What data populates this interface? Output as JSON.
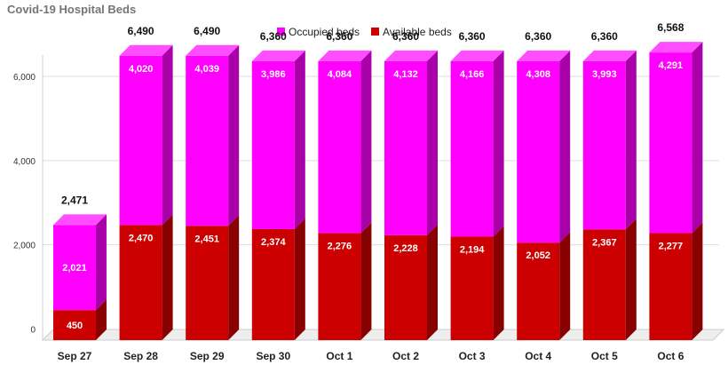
{
  "colors": {
    "occupied": "#ff00ff",
    "occupied_side": "#aa00aa",
    "occupied_top": "#ff4dff",
    "available": "#cc0000",
    "available_side": "#880000",
    "available_top": "#e02020",
    "grid": "#dddddd",
    "floor": "#eeeeee"
  },
  "chart_data": {
    "type": "bar",
    "stacked": true,
    "three_d": true,
    "title": "Covid-19 Hospital Beds",
    "xlabel": "",
    "ylabel": "",
    "ylim": [
      0,
      6500
    ],
    "yticks": [
      0,
      2000,
      4000,
      6000
    ],
    "ytick_labels": [
      "0",
      "2,000",
      "4,000",
      "6,000"
    ],
    "grid": true,
    "legend_position": "top-center",
    "categories": [
      "Sep 27",
      "Sep 28",
      "Sep 29",
      "Sep 30",
      "Oct 1",
      "Oct 2",
      "Oct 3",
      "Oct 4",
      "Oct 5",
      "Oct 6"
    ],
    "series": [
      {
        "name": "Available beds",
        "color": "#cc0000",
        "values": [
          450,
          2470,
          2451,
          2374,
          2276,
          2228,
          2194,
          2052,
          2367,
          2277
        ],
        "labels": [
          "450",
          "2,470",
          "2,451",
          "2,374",
          "2,276",
          "2,228",
          "2,194",
          "2,052",
          "2,367",
          "2,277"
        ]
      },
      {
        "name": "Occupied beds",
        "color": "#ff00ff",
        "values": [
          2021,
          4020,
          4039,
          3986,
          4084,
          4132,
          4166,
          4308,
          3993,
          4291
        ],
        "labels": [
          "2,021",
          "4,020",
          "4,039",
          "3,986",
          "4,084",
          "4,132",
          "4,166",
          "4,308",
          "3,993",
          "4,291"
        ]
      }
    ],
    "totals": [
      2471,
      6490,
      6490,
      6360,
      6360,
      6360,
      6360,
      6360,
      6360,
      6568
    ],
    "total_labels": [
      "2,471",
      "6,490",
      "6,490",
      "6,360",
      "6,360",
      "6,360",
      "6,360",
      "6,360",
      "6,360",
      "6,568"
    ]
  }
}
